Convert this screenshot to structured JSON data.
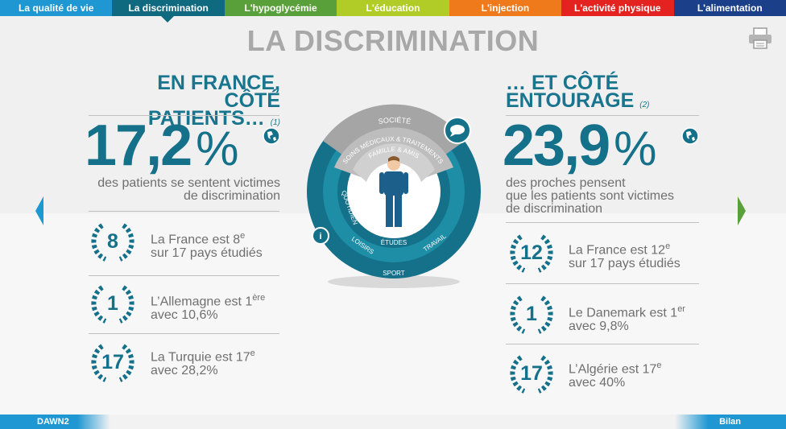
{
  "nav": {
    "tabs": [
      {
        "label": "La qualité de vie",
        "color": "#1e97d2"
      },
      {
        "label": "La discrimination",
        "color": "#0f6a80"
      },
      {
        "label": "L'hypoglycémie",
        "color": "#5aa03a"
      },
      {
        "label": "L'éducation",
        "color": "#b2cc27"
      },
      {
        "label": "L'injection",
        "color": "#ef7a1b"
      },
      {
        "label": "L'activité physique",
        "color": "#e42320"
      },
      {
        "label": "L'alimentation",
        "color": "#1b3f88"
      }
    ],
    "active_tab": "La discrimination"
  },
  "page": {
    "title": "LA DISCRIMINATION"
  },
  "left": {
    "heading_line1": "EN FRANCE,",
    "heading_line2": "CÔTÉ PATIENTS…",
    "note": "(1)",
    "big_value": "17,2",
    "big_unit": "%",
    "desc_line1": "des patients se sentent victimes",
    "desc_line2": "de discrimination",
    "ranks": [
      {
        "number": "8",
        "line1_text": "La France est 8",
        "line1_sup": "e",
        "line2": "sur 17 pays étudiés"
      },
      {
        "number": "1",
        "line1_text": "L’Allemagne est 1",
        "line1_sup": "ère",
        "line2": "avec 10,6%"
      },
      {
        "number": "17",
        "line1_text": "La Turquie est 17",
        "line1_sup": "e",
        "line2": "avec 28,2%"
      }
    ]
  },
  "right": {
    "heading_line1": "… ET CÔTÉ",
    "heading_line2": "ENTOURAGE",
    "note": "(2)",
    "big_value": "23,9",
    "big_unit": "%",
    "desc_line1": "des proches pensent",
    "desc_line2": "que les patients sont victimes",
    "desc_line3": "de discrimination",
    "ranks": [
      {
        "number": "12",
        "line1_text": "La France est 12",
        "line1_sup": "e",
        "line2": "sur 17 pays étudiés"
      },
      {
        "number": "1",
        "line1_text": "Le Danemark est 1",
        "line1_sup": "er",
        "line2": "avec 9,8%"
      },
      {
        "number": "17",
        "line1_text": "L’Algérie est 17",
        "line1_sup": "e",
        "line2": "avec 40%"
      }
    ]
  },
  "diagram": {
    "labels": {
      "societe": "SOCIÉTÉ",
      "soins": "SOINS MÉDICAUX & TRAITEMENTS",
      "famille": "FAMILLE & AMIS",
      "quotidien": "QUOTIDIEN",
      "etudes": "ÉTUDES",
      "travail": "TRAVAIL",
      "loisirs": "LOISIRS",
      "sport": "SPORT"
    },
    "info_icon": "i"
  },
  "footer": {
    "left_label": "DAWN2",
    "right_label": "Bilan"
  },
  "colors": {
    "teal": "#15708a",
    "grey_text": "#6f6f6f",
    "light_blue": "#1e97d2"
  }
}
